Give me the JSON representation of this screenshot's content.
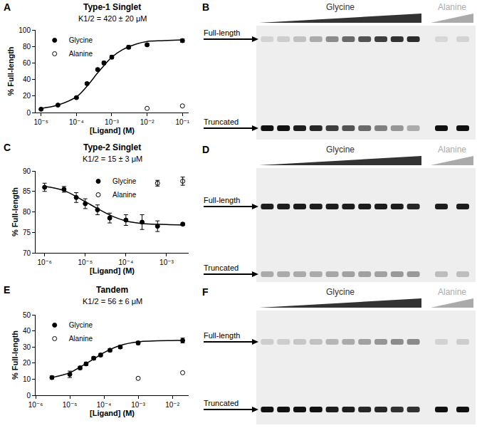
{
  "chart_data": [
    {
      "panel": "A",
      "type": "scatter",
      "title": "Type-1 Singlet",
      "subtitle": "K1/2 = 420 ± 20 μM",
      "x_label": "[Ligand] (M)",
      "y_label": "% Full-length",
      "log": "x",
      "grid": false,
      "legend": "upper left",
      "xlim": [
        7e-06,
        0.15
      ],
      "xticks": [
        {
          "value": 1e-05,
          "label": "10⁻⁵"
        },
        {
          "value": 0.0001,
          "label": "10⁻⁴"
        },
        {
          "value": 0.001,
          "label": "10⁻³"
        },
        {
          "value": 0.01,
          "label": "10⁻²"
        },
        {
          "value": 0.1,
          "label": "10⁻¹"
        }
      ],
      "ylim": [
        0,
        100
      ],
      "yticks": [
        0,
        20,
        40,
        60,
        80,
        100
      ],
      "series": [
        {
          "name": "Glycine",
          "color": "#000000",
          "marker": "circle",
          "x": [
            1e-05,
            3e-05,
            0.0001,
            0.0002,
            0.0004,
            0.0006,
            0.001,
            0.003,
            0.01,
            0.1
          ],
          "values": [
            4,
            9,
            18,
            35,
            52,
            60,
            67,
            79,
            82,
            87
          ],
          "error": [
            0.5,
            1,
            1,
            1.5,
            1.5,
            2,
            2,
            2,
            1.5,
            2
          ],
          "fit": {
            "x": [
              1e-05,
              3e-05,
              0.0001,
              0.0002,
              0.0004,
              0.0007,
              0.001,
              0.002,
              0.005,
              0.01,
              0.03,
              0.1
            ],
            "values": [
              5,
              9,
              19,
              32,
              48,
              60,
              67,
              76,
              83,
              86,
              87,
              88
            ]
          }
        },
        {
          "name": "Alanine",
          "color": "#000000",
          "marker": "circle-open",
          "x": [
            0.01,
            0.1
          ],
          "values": [
            5,
            8
          ]
        }
      ]
    },
    {
      "panel": "C",
      "type": "scatter",
      "title": "Type-2 Singlet",
      "subtitle": "K1/2 = 15 ± 3 μM",
      "x_label": "[Ligand] (M)",
      "y_label": "% Full-length",
      "log": "x",
      "grid": false,
      "legend": "upper center",
      "xlim": [
        6e-07,
        0.0035
      ],
      "xticks": [
        {
          "value": 1e-06,
          "label": "10⁻⁶"
        },
        {
          "value": 1e-05,
          "label": "10⁻⁵"
        },
        {
          "value": 0.0001,
          "label": "10⁻⁴"
        },
        {
          "value": 0.001,
          "label": "10⁻³"
        }
      ],
      "ylim": [
        70,
        90
      ],
      "yticks": [
        70,
        75,
        80,
        85,
        90
      ],
      "series": [
        {
          "name": "Glycine",
          "color": "#000000",
          "marker": "circle",
          "x": [
            1e-06,
            3e-06,
            6e-06,
            1e-05,
            2e-05,
            4e-05,
            0.0001,
            0.00025,
            0.0006,
            0.0025
          ],
          "values": [
            86,
            85.5,
            83.5,
            82,
            80.5,
            78.5,
            78,
            77.5,
            76.5,
            77
          ],
          "error": [
            1,
            0.7,
            1.2,
            1.2,
            1.2,
            1.2,
            1.3,
            1.8,
            1.3,
            0.3
          ],
          "fit": {
            "x": [
              1e-06,
              3e-06,
              1e-05,
              2e-05,
              5e-05,
              0.0001,
              0.0003,
              0.001,
              0.0025
            ],
            "values": [
              86.2,
              85.2,
              82.5,
              80.8,
              78.8,
              77.8,
              77.1,
              76.9,
              76.8
            ]
          }
        },
        {
          "name": "Alanine",
          "color": "#000000",
          "marker": "circle-open",
          "x": [
            0.0006,
            0.0025
          ],
          "values": [
            87,
            87.5
          ],
          "error": [
            0.7,
            1
          ]
        }
      ]
    },
    {
      "panel": "E",
      "type": "scatter",
      "title": "Tandem",
      "subtitle": "K1/2 = 56 ± 6 μM",
      "x_label": "[Ligand] (M)",
      "y_label": "% Full-length",
      "log": "x",
      "grid": false,
      "legend": "upper left",
      "xlim": [
        1e-06,
        0.03
      ],
      "xticks": [
        {
          "value": 1e-06,
          "label": "10⁻⁶"
        },
        {
          "value": 1e-05,
          "label": "10⁻⁵"
        },
        {
          "value": 0.0001,
          "label": "10⁻⁴"
        },
        {
          "value": 0.001,
          "label": "10⁻³"
        },
        {
          "value": 0.01,
          "label": "10⁻²"
        }
      ],
      "ylim": [
        0,
        50
      ],
      "yticks": [
        0,
        10,
        20,
        30,
        40,
        50
      ],
      "series": [
        {
          "name": "Glycine",
          "color": "#000000",
          "marker": "circle",
          "x": [
            3e-06,
            1e-05,
            2e-05,
            3e-05,
            5e-05,
            8e-05,
            0.00015,
            0.0003,
            0.001,
            0.02
          ],
          "values": [
            11,
            13,
            17,
            19.5,
            23,
            25,
            28,
            30,
            32.5,
            34
          ],
          "error": [
            1,
            2,
            1,
            1,
            1,
            1,
            1,
            1,
            1,
            1.5
          ],
          "fit": {
            "x": [
              3e-06,
              1e-05,
              2e-05,
              5e-05,
              0.0001,
              0.0003,
              0.001,
              0.01,
              0.02
            ],
            "values": [
              11,
              14,
              17.5,
              22.5,
              26.5,
              31,
              33.2,
              34,
              34
            ]
          }
        },
        {
          "name": "Alanine",
          "color": "#000000",
          "marker": "circle-open",
          "x": [
            0.001,
            0.02
          ],
          "values": [
            10.5,
            14
          ]
        }
      ]
    }
  ],
  "gels": [
    {
      "panel": "B",
      "gradients": [
        {
          "label": "Glycine",
          "lanes": 10,
          "color": "#333333"
        },
        {
          "label": "Alanine",
          "lanes": 2,
          "color": "#aaaaaa"
        }
      ],
      "bands": [
        {
          "label": "Full-length",
          "intensity": [
            0.12,
            0.15,
            0.2,
            0.3,
            0.45,
            0.6,
            0.7,
            0.8,
            0.85,
            0.88,
            0.1,
            0.12
          ]
        },
        {
          "label": "Truncated",
          "intensity": [
            1,
            1,
            0.95,
            0.9,
            0.8,
            0.7,
            0.6,
            0.5,
            0.4,
            0.3,
            1,
            1
          ]
        }
      ]
    },
    {
      "panel": "D",
      "gradients": [
        {
          "label": "Glycine",
          "lanes": 10,
          "color": "#333333"
        },
        {
          "label": "Alanine",
          "lanes": 2,
          "color": "#aaaaaa"
        }
      ],
      "bands": [
        {
          "label": "Full-length",
          "intensity": [
            0.95,
            0.95,
            0.95,
            0.95,
            0.95,
            0.95,
            0.95,
            0.95,
            0.95,
            0.9,
            0.95,
            0.95
          ]
        },
        {
          "label": "Truncated",
          "intensity": [
            0.3,
            0.3,
            0.3,
            0.3,
            0.32,
            0.35,
            0.35,
            0.35,
            0.38,
            0.38,
            0.22,
            0.22
          ]
        }
      ]
    },
    {
      "panel": "F",
      "gradients": [
        {
          "label": "Glycine",
          "lanes": 10,
          "color": "#333333"
        },
        {
          "label": "Alanine",
          "lanes": 2,
          "color": "#aaaaaa"
        }
      ],
      "bands": [
        {
          "label": "Full-length",
          "intensity": [
            0.15,
            0.15,
            0.18,
            0.2,
            0.25,
            0.3,
            0.35,
            0.4,
            0.45,
            0.45,
            0.12,
            0.15
          ]
        },
        {
          "label": "Truncated",
          "intensity": [
            1,
            1,
            1,
            1,
            0.95,
            0.95,
            0.9,
            0.9,
            0.85,
            0.85,
            1,
            1
          ]
        }
      ]
    }
  ]
}
